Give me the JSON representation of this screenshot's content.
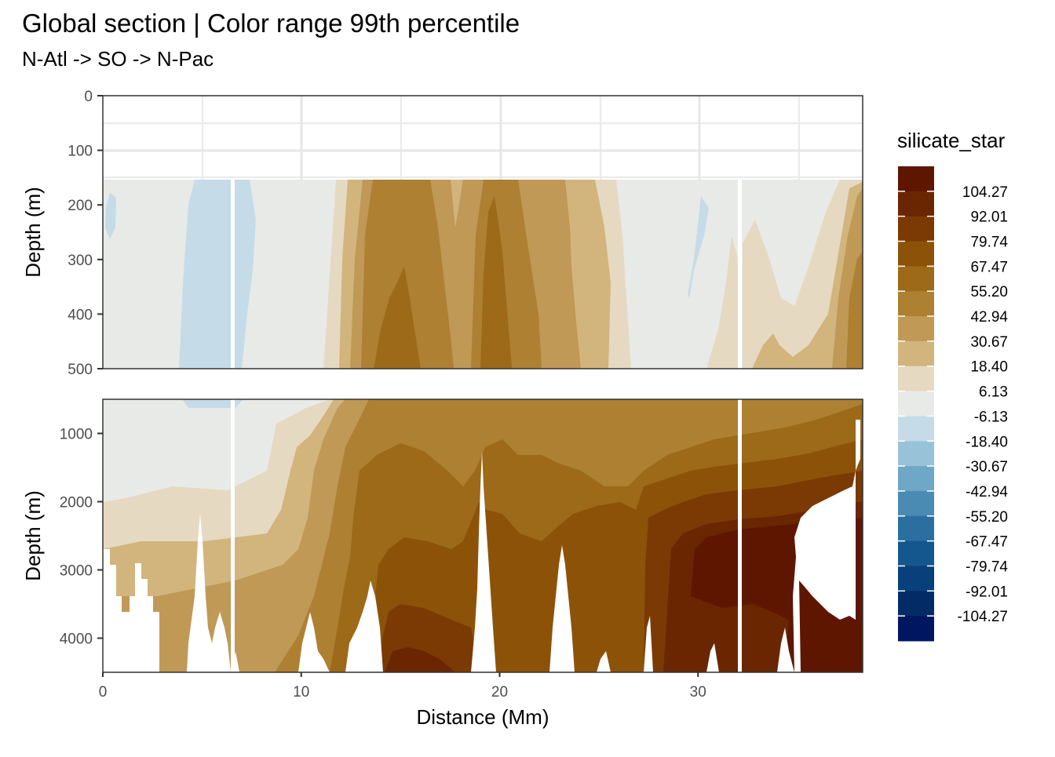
{
  "title": "Global section | Color range 99th percentile",
  "subtitle": "N-Atl -> SO -> N-Pac",
  "chart_data": {
    "type": "heatmap",
    "description": "Filled contour section plot of silicate_star versus distance and depth, split into an upper (0-500 m) and lower (500-4500 m) panel",
    "xlabel": "Distance (Mm)",
    "xlim": [
      0,
      38.3
    ],
    "xticks": [
      0,
      10,
      20,
      30
    ],
    "panels": [
      {
        "ylabel": "Depth (m)",
        "ylim": [
          0,
          500
        ],
        "yticks": [
          0,
          100,
          200,
          300,
          400,
          500
        ],
        "data_top_depth": 155
      },
      {
        "ylabel": "Depth (m)",
        "ylim": [
          500,
          4500
        ],
        "yticks": [
          1000,
          2000,
          3000,
          4000
        ]
      }
    ],
    "legend": {
      "title": "silicate_star",
      "position": "right",
      "labels": [
        "104.27",
        "92.01",
        "79.74",
        "67.47",
        "55.20",
        "42.94",
        "30.67",
        "18.40",
        "6.13",
        "-6.13",
        "-18.40",
        "-30.67",
        "-42.94",
        "-55.20",
        "-67.47",
        "-79.74",
        "-92.01",
        "-104.27"
      ],
      "colors": [
        "#5e1600",
        "#6a2600",
        "#7b3a03",
        "#8c5308",
        "#9c6a18",
        "#ad8032",
        "#bf9955",
        "#d2b47d",
        "#e6d9c2",
        "#e8eae8",
        "#c6dbe8",
        "#98c2d8",
        "#6fa7c6",
        "#4a8bb4",
        "#2a6fa0",
        "#14578e",
        "#07407b",
        "#032c66",
        "#001660"
      ]
    },
    "grid": true,
    "gaps_at_distance": [
      6.5,
      32.1
    ]
  }
}
